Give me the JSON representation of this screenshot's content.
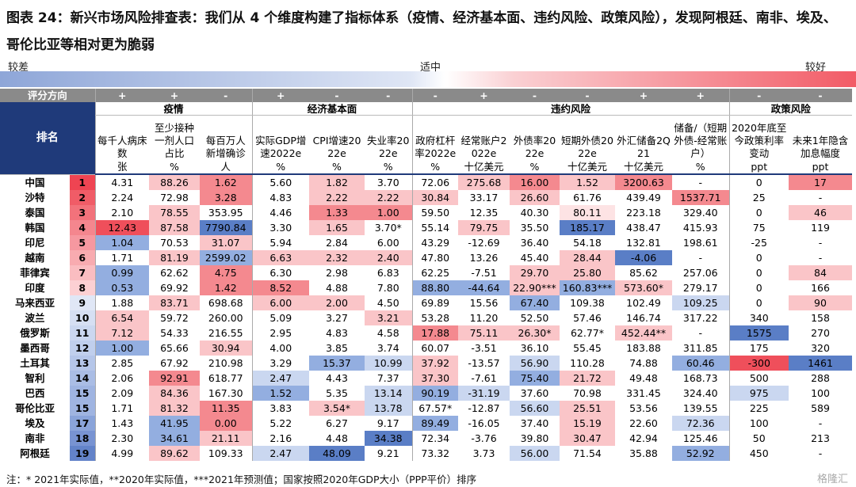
{
  "title": "图表 24：新兴市场风险排查表：我们从 4 个维度构建了指标体系（疫情、经济基本面、违约风险、政策风险），发现阿根廷、南非、埃及、哥伦比亚等相对更为脆弱",
  "scale": {
    "left": "较差",
    "middle": "适中",
    "right": "较好"
  },
  "table": {
    "direction_label": "评分方向",
    "rank_label": "排名",
    "groups": [
      {
        "name": "疫情",
        "columns": [
          {
            "label": "每千人病床数",
            "unit": "张",
            "direction": "+"
          },
          {
            "label": "至少接种一剂人口占比",
            "unit": "%",
            "direction": "+"
          },
          {
            "label": "每百万人新增确诊",
            "unit": "人",
            "direction": "-"
          }
        ]
      },
      {
        "name": "经济基本面",
        "columns": [
          {
            "label": "实际GDP增速2022e",
            "unit": "%",
            "direction": "+"
          },
          {
            "label": "CPI增速2022e",
            "unit": "%",
            "direction": "-"
          },
          {
            "label": "失业率2022e",
            "unit": "%",
            "direction": "-"
          }
        ]
      },
      {
        "name": "违约风险",
        "columns": [
          {
            "label": "政府杠杆率2022e",
            "unit": "%",
            "direction": "-"
          },
          {
            "label": "经常账户2022e",
            "unit": "十亿美元",
            "direction": "+"
          },
          {
            "label": "外债率2022e",
            "unit": "%",
            "direction": "-"
          },
          {
            "label": "短期外债2022e",
            "unit": "十亿美元",
            "direction": "-"
          },
          {
            "label": "外汇储备2Q21",
            "unit": "十亿美元",
            "direction": "+"
          },
          {
            "label": "储备/（短期外债-经常账户）",
            "unit": "%",
            "direction": "+"
          }
        ]
      },
      {
        "name": "政策风险",
        "columns": [
          {
            "label": "2020年底至今政策利率变动",
            "unit": "ppt",
            "direction": "-"
          },
          {
            "label": "未来1年隐含加息幅度",
            "unit": "ppt",
            "direction": "-"
          }
        ]
      }
    ],
    "rows": [
      {
        "country": "中国",
        "rank": 1,
        "rank_color": "#ef4452",
        "cells": [
          "4.31",
          "88.26",
          "1.62",
          "5.60",
          "1.82",
          "3.70",
          "72.06",
          "275.68",
          "16.00",
          "1.52",
          "3200.63",
          "-",
          "0",
          "17"
        ],
        "colors": [
          null,
          "#fac5c8",
          "#f4898f",
          null,
          "#fac5c8",
          null,
          null,
          "#fac5c8",
          "#f4898f",
          "#fac5c8",
          "#f4898f",
          null,
          null,
          "#f4898f"
        ]
      },
      {
        "country": "沙特",
        "rank": 2,
        "rank_color": "#f05c67",
        "cells": [
          "2.24",
          "72.98",
          "3.28",
          "4.83",
          "2.22",
          "2.22",
          "30.84",
          "33.17",
          "26.60",
          "61.76",
          "439.49",
          "1537.71",
          "25",
          "-"
        ],
        "colors": [
          null,
          null,
          "#f4898f",
          null,
          "#fac5c8",
          "#fac5c8",
          "#fac5c8",
          null,
          "#fac5c8",
          null,
          null,
          "#f4898f",
          null,
          null
        ]
      },
      {
        "country": "泰国",
        "rank": 3,
        "rank_color": "#f2727b",
        "cells": [
          "2.10",
          "78.55",
          "353.95",
          "4.46",
          "1.33",
          "1.00",
          "59.50",
          "12.35",
          "40.30",
          "80.11",
          "223.18",
          "329.40",
          "0",
          "46"
        ],
        "colors": [
          null,
          "#fac5c8",
          null,
          null,
          "#f4898f",
          "#f4898f",
          null,
          null,
          null,
          "#fde3e4",
          null,
          null,
          null,
          "#fac5c8"
        ]
      },
      {
        "country": "韩国",
        "rank": 4,
        "rank_color": "#f4868e",
        "cells": [
          "12.43",
          "87.58",
          "7790.84",
          "3.30",
          "1.65",
          "3.70*",
          "55.14",
          "79.75",
          "35.50",
          "185.17",
          "438.47",
          "415.93",
          "75",
          "119"
        ],
        "colors": [
          "#ef4f5b",
          "#fac5c8",
          "#5a7ec6",
          null,
          "#fac5c8",
          null,
          null,
          "#fac5c8",
          null,
          "#5a7ec6",
          null,
          null,
          null,
          null
        ]
      },
      {
        "country": "印尼",
        "rank": 5,
        "rank_color": "#f698a0",
        "cells": [
          "1.04",
          "70.53",
          "31.07",
          "5.94",
          "2.84",
          "6.00",
          "43.29",
          "-12.69",
          "36.40",
          "54.18",
          "132.81",
          "198.61",
          "-25",
          "-"
        ],
        "colors": [
          "#93aee0",
          null,
          "#fac5c8",
          null,
          null,
          null,
          null,
          null,
          null,
          null,
          null,
          null,
          null,
          null
        ]
      },
      {
        "country": "越南",
        "rank": 6,
        "rank_color": "#f8abb0",
        "cells": [
          "1.71",
          "81.19",
          "2599.02",
          "6.63",
          "2.32",
          "2.40",
          "47.80",
          "13.26",
          "45.40",
          "28.44",
          "-4.06",
          "-",
          "0",
          "-"
        ],
        "colors": [
          null,
          "#fac5c8",
          "#93aee0",
          "#fac5c8",
          "#fac5c8",
          "#fac5c8",
          null,
          null,
          null,
          "#fac5c8",
          "#5a7ec6",
          null,
          null,
          null
        ]
      },
      {
        "country": "菲律宾",
        "rank": 7,
        "rank_color": "#fabdc1",
        "cells": [
          "0.99",
          "62.62",
          "4.75",
          "6.30",
          "2.98",
          "6.83",
          "62.25",
          "-7.51",
          "29.70",
          "25.80",
          "85.62",
          "257.06",
          "0",
          "84"
        ],
        "colors": [
          "#93aee0",
          null,
          "#f4898f",
          null,
          null,
          null,
          null,
          null,
          "#fac5c8",
          "#fac5c8",
          null,
          null,
          null,
          "#fac5c8"
        ]
      },
      {
        "country": "印度",
        "rank": 8,
        "rank_color": "#fcd0d3",
        "cells": [
          "0.53",
          "69.92",
          "1.42",
          "8.52",
          "4.88",
          "7.80",
          "88.80",
          "-44.64",
          "22.90***",
          "160.83***",
          "573.60*",
          "279.17",
          "0",
          "166"
        ],
        "colors": [
          "#93aee0",
          null,
          "#f4898f",
          "#f4898f",
          null,
          null,
          "#93aee0",
          "#93aee0",
          "#fac5c8",
          "#93aee0",
          "#fac5c8",
          null,
          null,
          null
        ]
      },
      {
        "country": "马来西亚",
        "rank": 9,
        "rank_color": "#e0e7f6",
        "cells": [
          "1.88",
          "83.71",
          "698.68",
          "6.00",
          "2.00",
          "4.50",
          "69.89",
          "15.56",
          "67.40",
          "109.38",
          "102.49",
          "109.25",
          "0",
          "90"
        ],
        "colors": [
          null,
          "#fac5c8",
          null,
          "#fac5c8",
          "#fac5c8",
          null,
          null,
          null,
          "#93aee0",
          null,
          null,
          "#cad7f0",
          null,
          "#fac5c8"
        ]
      },
      {
        "country": "波兰",
        "rank": 10,
        "rank_color": "#d6dff3",
        "cells": [
          "6.54",
          "59.72",
          "260.00",
          "5.09",
          "3.27",
          "3.21",
          "53.28",
          "11.20",
          "52.50",
          "57.46",
          "146.74",
          "317.22",
          "340",
          "158"
        ],
        "colors": [
          "#fac5c8",
          null,
          null,
          null,
          null,
          "#fac5c8",
          null,
          null,
          null,
          null,
          null,
          null,
          null,
          null
        ]
      },
      {
        "country": "俄罗斯",
        "rank": 11,
        "rank_color": "#cbd7f0",
        "cells": [
          "7.12",
          "54.33",
          "216.55",
          "2.95",
          "4.83",
          "4.58",
          "17.88",
          "75.11",
          "26.30*",
          "62.77*",
          "452.44**",
          "-",
          "1575",
          "270"
        ],
        "colors": [
          "#fac5c8",
          null,
          null,
          null,
          null,
          null,
          "#f4898f",
          "#fac5c8",
          "#fac5c8",
          null,
          "#fac5c8",
          null,
          "#5a7ec6",
          null
        ]
      },
      {
        "country": "墨西哥",
        "rank": 12,
        "rank_color": "#c0cfed",
        "cells": [
          "1.00",
          "65.66",
          "30.94",
          "4.00",
          "3.85",
          "3.74",
          "60.07",
          "-3.51",
          "36.10",
          "55.45",
          "183.88",
          "311.85",
          "175",
          "320"
        ],
        "colors": [
          "#93aee0",
          null,
          "#fac5c8",
          null,
          null,
          null,
          null,
          null,
          null,
          null,
          null,
          null,
          null,
          null
        ]
      },
      {
        "country": "土耳其",
        "rank": 13,
        "rank_color": "#b5c6e9",
        "cells": [
          "2.85",
          "67.92",
          "210.98",
          "3.29",
          "15.37",
          "10.99",
          "37.92",
          "-13.57",
          "56.90",
          "110.28",
          "74.88",
          "60.46",
          "-300",
          "1461"
        ],
        "colors": [
          null,
          null,
          null,
          null,
          "#93aee0",
          "#cad7f0",
          "#fac5c8",
          null,
          "#cad7f0",
          null,
          null,
          "#93aee0",
          "#ef4f5b",
          "#5a7ec6"
        ]
      },
      {
        "country": "智利",
        "rank": 14,
        "rank_color": "#aabde5",
        "cells": [
          "2.06",
          "92.91",
          "618.77",
          "2.47",
          "4.43",
          "7.37",
          "37.30",
          "-7.61",
          "75.40",
          "21.72",
          "49.48",
          "168.73",
          "500",
          "288"
        ],
        "colors": [
          null,
          "#f4898f",
          null,
          "#cad7f0",
          null,
          null,
          "#fac5c8",
          null,
          "#93aee0",
          "#fac5c8",
          null,
          null,
          null,
          null
        ]
      },
      {
        "country": "巴西",
        "rank": 15,
        "rank_color": "#9fb4e1",
        "cells": [
          "2.09",
          "84.36",
          "167.30",
          "1.52",
          "5.35",
          "13.14",
          "90.19",
          "-31.19",
          "37.60",
          "70.98",
          "331.45",
          "324.40",
          "975",
          "100"
        ],
        "colors": [
          null,
          "#fac5c8",
          null,
          "#93aee0",
          null,
          "#cad7f0",
          "#93aee0",
          "#cad7f0",
          null,
          null,
          null,
          null,
          "#cad7f0",
          null
        ]
      },
      {
        "country": "哥伦比亚",
        "rank": 15,
        "rank_color": "#9fb4e1",
        "cells": [
          "1.71",
          "81.32",
          "11.35",
          "3.83",
          "3.54*",
          "13.78",
          "67.57*",
          "-12.87",
          "56.60",
          "25.51",
          "53.56",
          "139.55",
          "225",
          "589"
        ],
        "colors": [
          null,
          "#fac5c8",
          "#f4898f",
          null,
          "#fac5c8",
          "#cad7f0",
          null,
          null,
          "#cad7f0",
          "#fac5c8",
          null,
          null,
          null,
          null
        ]
      },
      {
        "country": "埃及",
        "rank": 17,
        "rank_color": "#8aa4da",
        "cells": [
          "1.43",
          "41.95",
          "0.00",
          "5.22",
          "6.27",
          "9.17",
          "89.49",
          "-16.05",
          "37.40",
          "15.19",
          "22.60",
          "72.36",
          "100",
          "-"
        ],
        "colors": [
          null,
          "#93aee0",
          "#f4898f",
          null,
          null,
          null,
          "#93aee0",
          null,
          null,
          "#fac5c8",
          null,
          "#cad7f0",
          null,
          null
        ]
      },
      {
        "country": "南非",
        "rank": 18,
        "rank_color": "#7893d2",
        "cells": [
          "2.30",
          "34.61",
          "21.11",
          "2.16",
          "4.48",
          "34.38",
          "72.34",
          "-3.76",
          "39.80",
          "30.47",
          "42.94",
          "125.46",
          "50",
          "213"
        ],
        "colors": [
          null,
          "#93aee0",
          "#fac5c8",
          null,
          null,
          "#5a7ec6",
          null,
          null,
          null,
          "#fac5c8",
          null,
          null,
          null,
          null
        ]
      },
      {
        "country": "阿根廷",
        "rank": 19,
        "rank_color": "#6383c9",
        "cells": [
          "4.99",
          "89.62",
          "109.33",
          "2.47",
          "48.09",
          "9.21",
          "73.32",
          "3.73",
          "56.00",
          "71.54",
          "35.88",
          "52.92",
          "450",
          "-"
        ],
        "colors": [
          null,
          "#fac5c8",
          null,
          "#cad7f0",
          "#5a7ec6",
          null,
          null,
          null,
          "#cad7f0",
          null,
          null,
          "#93aee0",
          null,
          null
        ]
      }
    ]
  },
  "footnote": "注：* 2021年实际值，**2020年实际值，***2021年预测值；国家按照2020年GDP大小（PPP平价）排序",
  "watermark": "格隆汇"
}
